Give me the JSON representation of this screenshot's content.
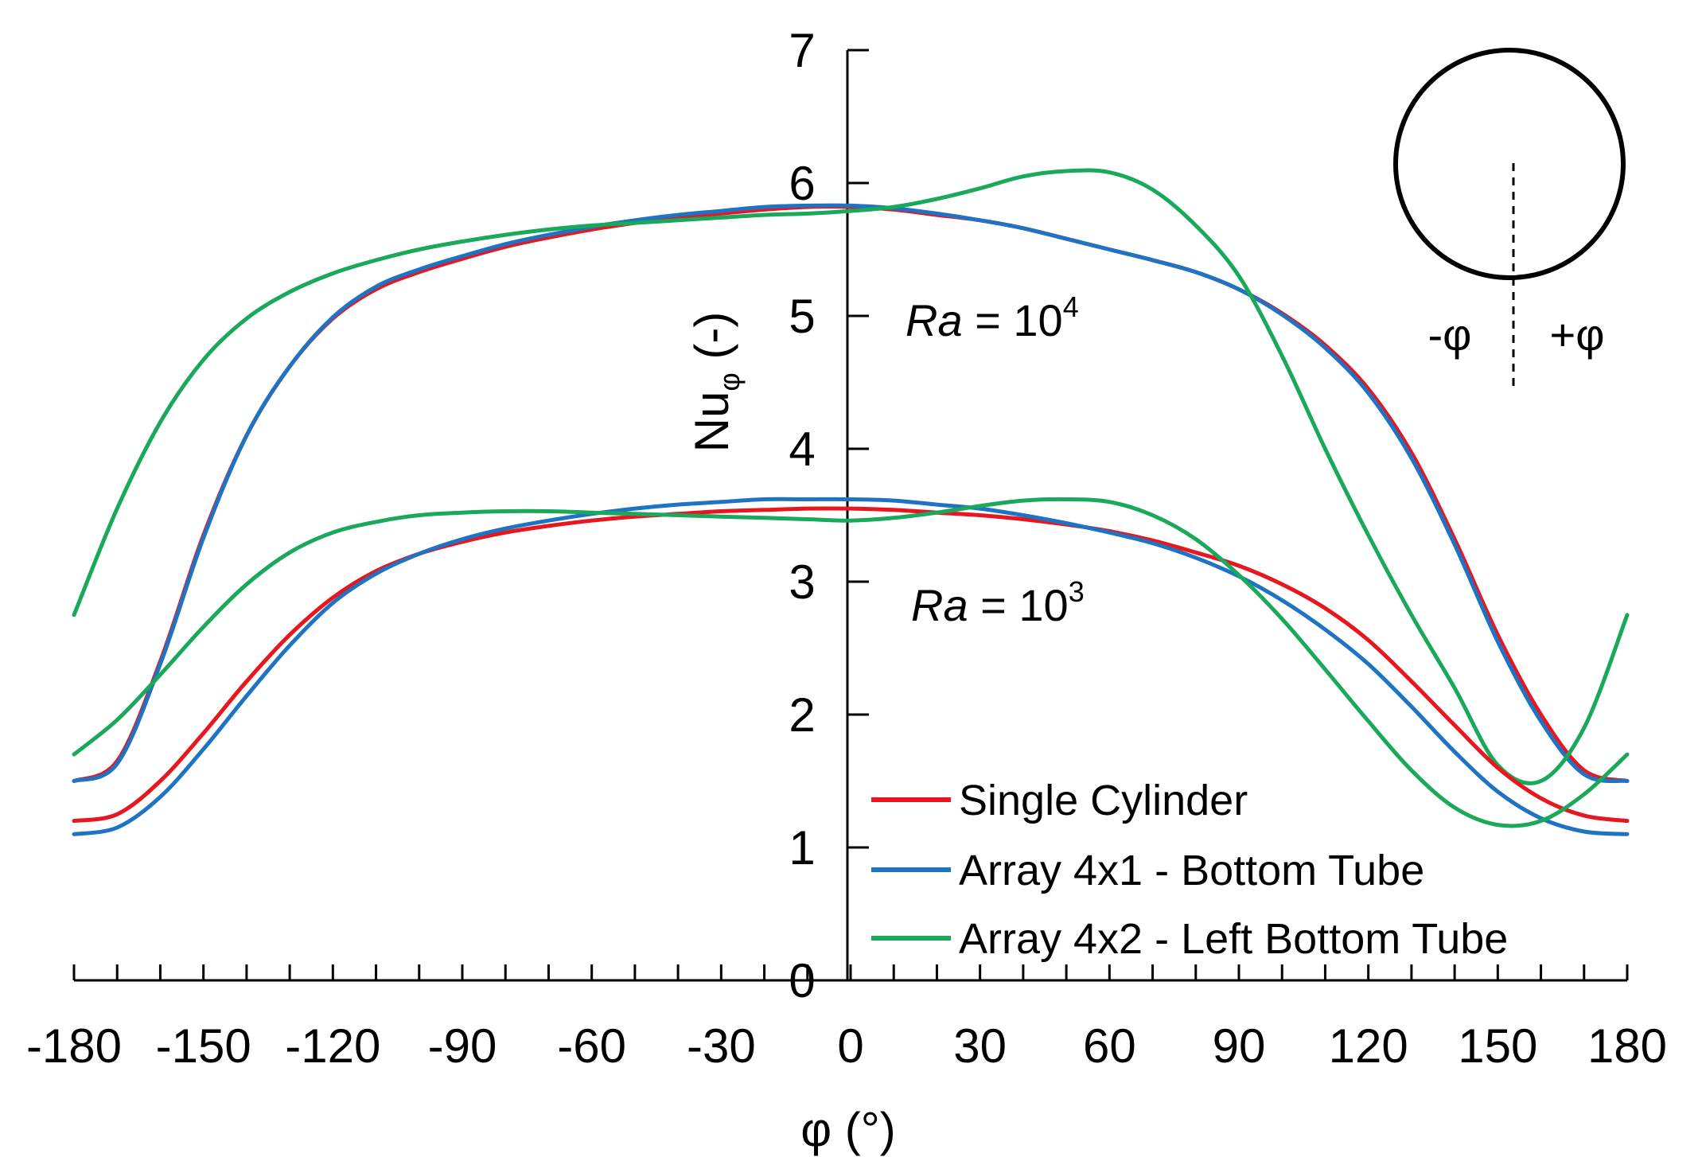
{
  "chart_data": {
    "type": "line",
    "xlabel": "φ (°)",
    "ylabel": "Nu",
    "ylabel_sub": "φ",
    "ylabel_suffix": "(-)",
    "xlim": [
      -180,
      180
    ],
    "ylim": [
      0,
      7
    ],
    "xticks": [
      -180,
      -150,
      -120,
      -90,
      -60,
      -30,
      0,
      30,
      60,
      90,
      120,
      150,
      180
    ],
    "yticks": [
      0,
      1,
      2,
      3,
      4,
      5,
      6,
      7
    ],
    "grid": false,
    "legend_position": "bottom-right",
    "colors": {
      "Single Cylinder": "#e8161e",
      "Array 4x1 - Bottom Tube": "#1f73c3",
      "Array 4x2 - Left Bottom Tube": "#1aa85a"
    },
    "annotations": [
      {
        "italic": "Ra",
        "rest": " = 10",
        "sup": "4"
      },
      {
        "italic": "Ra",
        "rest": " = 10",
        "sup": "3"
      }
    ],
    "inset": {
      "minus_label": "-φ",
      "plus_label": "+φ"
    },
    "series": [
      {
        "name": "Single Cylinder",
        "Ra": "10^4",
        "x": [
          -180,
          -170,
          -160,
          -150,
          -140,
          -130,
          -120,
          -110,
          -100,
          -90,
          -80,
          -70,
          -60,
          -50,
          -40,
          -30,
          -20,
          -10,
          0,
          10,
          20,
          30,
          40,
          50,
          60,
          70,
          80,
          90,
          100,
          110,
          120,
          130,
          140,
          150,
          160,
          170,
          180
        ],
        "y": [
          1.5,
          1.65,
          2.4,
          3.35,
          4.1,
          4.62,
          4.98,
          5.2,
          5.33,
          5.43,
          5.52,
          5.59,
          5.65,
          5.7,
          5.74,
          5.77,
          5.8,
          5.82,
          5.82,
          5.8,
          5.76,
          5.72,
          5.66,
          5.58,
          5.5,
          5.42,
          5.33,
          5.2,
          5.02,
          4.78,
          4.45,
          3.97,
          3.32,
          2.6,
          2.0,
          1.58,
          1.5
        ]
      },
      {
        "name": "Array 4x1 - Bottom Tube",
        "Ra": "10^4",
        "x": [
          -180,
          -170,
          -160,
          -150,
          -140,
          -130,
          -120,
          -110,
          -100,
          -90,
          -80,
          -70,
          -60,
          -50,
          -40,
          -30,
          -20,
          -10,
          0,
          10,
          20,
          30,
          40,
          50,
          60,
          70,
          80,
          90,
          100,
          110,
          120,
          130,
          140,
          150,
          160,
          170,
          180
        ],
        "y": [
          1.5,
          1.63,
          2.38,
          3.33,
          4.1,
          4.62,
          4.99,
          5.22,
          5.35,
          5.45,
          5.54,
          5.61,
          5.67,
          5.72,
          5.76,
          5.79,
          5.82,
          5.83,
          5.83,
          5.81,
          5.77,
          5.72,
          5.66,
          5.58,
          5.5,
          5.42,
          5.33,
          5.2,
          5.01,
          4.76,
          4.42,
          3.93,
          3.28,
          2.55,
          1.95,
          1.55,
          1.5
        ]
      },
      {
        "name": "Array 4x2 - Left Bottom Tube",
        "Ra": "10^4",
        "x": [
          -180,
          -170,
          -160,
          -150,
          -140,
          -130,
          -120,
          -110,
          -100,
          -90,
          -80,
          -70,
          -60,
          -50,
          -40,
          -30,
          -20,
          -10,
          0,
          10,
          20,
          30,
          40,
          50,
          60,
          70,
          80,
          90,
          100,
          110,
          120,
          130,
          140,
          150,
          160,
          170,
          180
        ],
        "y": [
          2.75,
          3.55,
          4.2,
          4.67,
          4.98,
          5.18,
          5.32,
          5.42,
          5.5,
          5.56,
          5.61,
          5.65,
          5.68,
          5.7,
          5.72,
          5.74,
          5.76,
          5.77,
          5.79,
          5.82,
          5.88,
          5.96,
          6.05,
          6.09,
          6.08,
          5.95,
          5.68,
          5.3,
          4.7,
          4.0,
          3.35,
          2.75,
          2.2,
          1.62,
          1.5,
          1.9,
          2.75
        ]
      },
      {
        "name": "Single Cylinder",
        "Ra": "10^3",
        "x": [
          -180,
          -170,
          -160,
          -150,
          -140,
          -130,
          -120,
          -110,
          -100,
          -90,
          -80,
          -70,
          -60,
          -50,
          -40,
          -30,
          -20,
          -10,
          0,
          10,
          20,
          30,
          40,
          50,
          60,
          70,
          80,
          90,
          100,
          110,
          120,
          130,
          140,
          150,
          160,
          170,
          180
        ],
        "y": [
          1.2,
          1.25,
          1.5,
          1.86,
          2.25,
          2.6,
          2.88,
          3.08,
          3.21,
          3.3,
          3.37,
          3.42,
          3.46,
          3.49,
          3.51,
          3.53,
          3.54,
          3.55,
          3.55,
          3.54,
          3.52,
          3.5,
          3.47,
          3.43,
          3.38,
          3.31,
          3.22,
          3.12,
          2.98,
          2.8,
          2.56,
          2.25,
          1.92,
          1.6,
          1.37,
          1.24,
          1.2
        ]
      },
      {
        "name": "Array 4x1 - Bottom Tube",
        "Ra": "10^3",
        "x": [
          -180,
          -170,
          -160,
          -150,
          -140,
          -130,
          -120,
          -110,
          -100,
          -90,
          -80,
          -70,
          -60,
          -50,
          -40,
          -30,
          -20,
          -10,
          0,
          10,
          20,
          30,
          40,
          50,
          60,
          70,
          80,
          90,
          100,
          110,
          120,
          130,
          140,
          150,
          160,
          170,
          180
        ],
        "y": [
          1.1,
          1.15,
          1.38,
          1.74,
          2.14,
          2.52,
          2.84,
          3.06,
          3.21,
          3.32,
          3.4,
          3.46,
          3.51,
          3.55,
          3.58,
          3.6,
          3.62,
          3.62,
          3.62,
          3.61,
          3.58,
          3.55,
          3.5,
          3.44,
          3.37,
          3.29,
          3.18,
          3.04,
          2.86,
          2.64,
          2.38,
          2.06,
          1.72,
          1.42,
          1.22,
          1.12,
          1.1
        ]
      },
      {
        "name": "Array 4x2 - Left Bottom Tube",
        "Ra": "10^3",
        "x": [
          -180,
          -170,
          -160,
          -150,
          -140,
          -130,
          -120,
          -110,
          -100,
          -90,
          -80,
          -70,
          -60,
          -50,
          -40,
          -30,
          -20,
          -10,
          0,
          10,
          20,
          30,
          40,
          50,
          60,
          70,
          80,
          90,
          100,
          110,
          120,
          130,
          140,
          150,
          160,
          170,
          180
        ],
        "y": [
          1.7,
          1.96,
          2.3,
          2.66,
          2.98,
          3.22,
          3.37,
          3.45,
          3.5,
          3.52,
          3.53,
          3.53,
          3.52,
          3.51,
          3.5,
          3.49,
          3.48,
          3.47,
          3.46,
          3.48,
          3.52,
          3.57,
          3.61,
          3.62,
          3.6,
          3.5,
          3.32,
          3.05,
          2.72,
          2.34,
          1.95,
          1.58,
          1.3,
          1.17,
          1.2,
          1.4,
          1.7
        ]
      }
    ]
  }
}
